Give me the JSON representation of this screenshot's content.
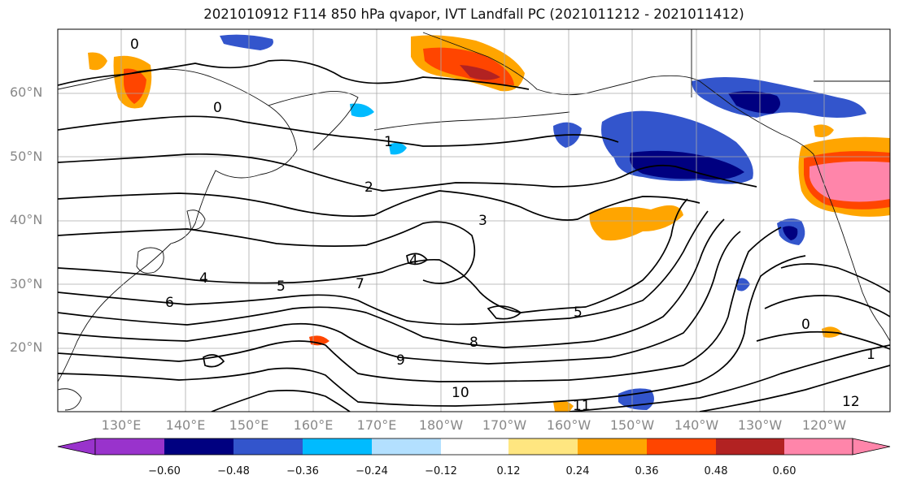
{
  "figure": {
    "title": "2021010912 F114 850 hPa qvapor, IVT Landfall PC (2021011212 - 2021011412)"
  },
  "axes": {
    "lat_labels": [
      "60°N",
      "50°N",
      "40°N",
      "30°N",
      "20°N"
    ],
    "lon_labels": [
      "130°E",
      "140°E",
      "150°E",
      "160°E",
      "170°E",
      "180°W",
      "170°W",
      "160°W",
      "150°W",
      "140°W",
      "130°W",
      "120°W"
    ]
  },
  "colorbar": {
    "ticks": [
      "−0.60",
      "−0.48",
      "−0.36",
      "−0.24",
      "−0.12",
      "0.12",
      "0.24",
      "0.36",
      "0.48",
      "0.60"
    ],
    "colors": [
      "#9933cc",
      "#000080",
      "#3355cc",
      "#00bbff",
      "#b3e0ff",
      "#ffffff",
      "#ffe680",
      "#ffa500",
      "#ff4500",
      "#b22222",
      "#ff85aa"
    ]
  },
  "contour_labels": [
    "0",
    "1",
    "2",
    "3",
    "4",
    "5",
    "6",
    "7",
    "8",
    "9",
    "10",
    "11",
    "12"
  ],
  "colors": {
    "land_outline": "#111111",
    "contour": "#000000",
    "grid": "#aaaaaa"
  }
}
